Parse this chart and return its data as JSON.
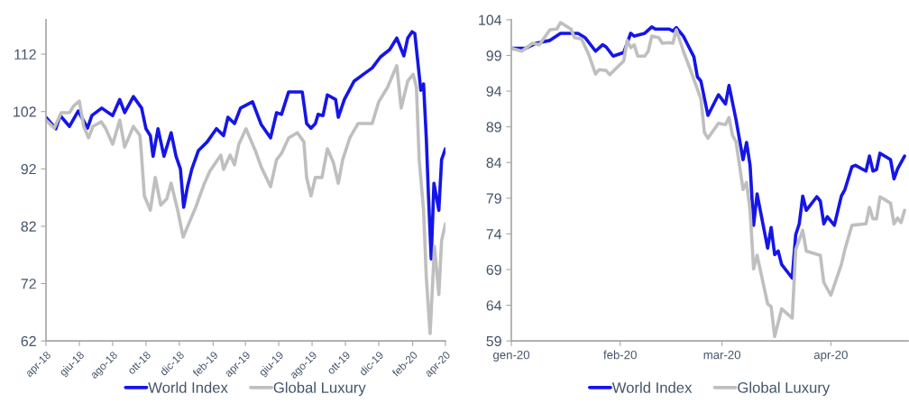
{
  "chart_data": [
    {
      "type": "line",
      "xlim": [
        "2018-04-01",
        "2020-04-01"
      ],
      "ylim": [
        62,
        118
      ],
      "yticks": [
        62,
        72,
        82,
        92,
        102,
        112
      ],
      "xticks": [
        {
          "value": "2018-04-01",
          "label": "apr-18"
        },
        {
          "value": "2018-06-01",
          "label": "giu-18"
        },
        {
          "value": "2018-08-01",
          "label": "ago-18"
        },
        {
          "value": "2018-10-01",
          "label": "ott-18"
        },
        {
          "value": "2018-12-01",
          "label": "dic-18"
        },
        {
          "value": "2019-02-01",
          "label": "feb-19"
        },
        {
          "value": "2019-04-01",
          "label": "apr-19"
        },
        {
          "value": "2019-06-01",
          "label": "giu-19"
        },
        {
          "value": "2019-08-01",
          "label": "ago-19"
        },
        {
          "value": "2019-10-01",
          "label": "ott-19"
        },
        {
          "value": "2019-12-01",
          "label": "dic-19"
        },
        {
          "value": "2020-02-01",
          "label": "feb-20"
        },
        {
          "value": "2020-04-01",
          "label": "apr-20"
        }
      ],
      "grid": false,
      "legend": "bottom",
      "marker": "none",
      "line_style": "solid",
      "series": [
        {
          "name": "World Index",
          "color": "#1515e8",
          "x": [
            "2018-04-01",
            "2018-04-19",
            "2018-04-27",
            "2018-05-14",
            "2018-05-30",
            "2018-06-16",
            "2018-06-24",
            "2018-07-12",
            "2018-08-01",
            "2018-08-14",
            "2018-08-23",
            "2018-09-08",
            "2018-09-23",
            "2018-10-01",
            "2018-10-09",
            "2018-10-14",
            "2018-10-23",
            "2018-11-03",
            "2018-11-16",
            "2018-11-25",
            "2018-12-03",
            "2018-12-09",
            "2018-12-16",
            "2018-12-24",
            "2019-01-05",
            "2019-01-21",
            "2019-02-07",
            "2019-02-20",
            "2019-02-28",
            "2019-03-12",
            "2019-03-23",
            "2019-04-14",
            "2019-04-30",
            "2019-05-17",
            "2019-05-28",
            "2019-06-06",
            "2019-06-19",
            "2019-07-14",
            "2019-07-22",
            "2019-07-30",
            "2019-08-07",
            "2019-08-12",
            "2019-08-21",
            "2019-08-29",
            "2019-09-13",
            "2019-09-18",
            "2019-09-29",
            "2019-10-17",
            "2019-11-03",
            "2019-11-19",
            "2019-12-04",
            "2019-12-21",
            "2020-01-03",
            "2020-01-16",
            "2020-01-23",
            "2020-01-31",
            "2020-02-05",
            "2020-02-16",
            "2020-02-21",
            "2020-02-26",
            "2020-03-01",
            "2020-03-06",
            "2020-03-11",
            "2020-03-20",
            "2020-03-25",
            "2020-04-01"
          ],
          "values": [
            101.0,
            99.0,
            101.3,
            99.4,
            102.1,
            99.1,
            101.3,
            102.6,
            101.3,
            104.1,
            101.8,
            104.6,
            102.6,
            99.0,
            97.8,
            94.2,
            99.0,
            94.2,
            98.3,
            94.2,
            92.0,
            85.3,
            88.9,
            92.0,
            95.2,
            96.7,
            99.0,
            97.8,
            101.0,
            99.9,
            102.6,
            103.7,
            99.7,
            97.4,
            101.8,
            101.5,
            105.4,
            105.4,
            99.9,
            99.1,
            99.9,
            101.5,
            101.3,
            104.9,
            104.1,
            101.0,
            104.1,
            107.3,
            108.5,
            109.6,
            111.5,
            112.8,
            114.8,
            111.7,
            114.8,
            115.9,
            115.6,
            105.7,
            106.8,
            97.4,
            87.3,
            76.3,
            89.5,
            84.8,
            93.6,
            95.5
          ]
        },
        {
          "name": "Global Luxury",
          "color": "#bfbfbf",
          "x": [
            "2018-04-01",
            "2018-04-16",
            "2018-04-29",
            "2018-05-14",
            "2018-05-22",
            "2018-06-01",
            "2018-06-09",
            "2018-06-18",
            "2018-06-26",
            "2018-07-11",
            "2018-07-19",
            "2018-08-01",
            "2018-08-14",
            "2018-08-23",
            "2018-09-08",
            "2018-09-20",
            "2018-09-23",
            "2018-09-28",
            "2018-10-09",
            "2018-10-18",
            "2018-10-28",
            "2018-11-08",
            "2018-11-16",
            "2018-11-28",
            "2018-12-08",
            "2018-12-19",
            "2018-12-31",
            "2019-01-16",
            "2019-01-26",
            "2019-02-15",
            "2019-02-20",
            "2019-03-04",
            "2019-03-12",
            "2019-03-20",
            "2019-04-02",
            "2019-04-19",
            "2019-04-30",
            "2019-05-17",
            "2019-05-28",
            "2019-06-06",
            "2019-06-19",
            "2019-07-05",
            "2019-07-17",
            "2019-07-22",
            "2019-07-30",
            "2019-08-07",
            "2019-08-19",
            "2019-08-29",
            "2019-09-09",
            "2019-09-18",
            "2019-09-26",
            "2019-10-09",
            "2019-10-24",
            "2019-11-09",
            "2019-11-19",
            "2019-12-01",
            "2019-12-17",
            "2020-01-03",
            "2020-01-11",
            "2020-01-23",
            "2020-02-02",
            "2020-02-08",
            "2020-02-13",
            "2020-02-21",
            "2020-02-26",
            "2020-03-04",
            "2020-03-12",
            "2020-03-20",
            "2020-03-25",
            "2020-04-01"
          ],
          "values": [
            100.5,
            99.1,
            101.8,
            101.8,
            103.0,
            103.8,
            99.4,
            97.4,
            99.4,
            100.2,
            99.1,
            96.3,
            100.5,
            95.8,
            99.4,
            97.8,
            94.2,
            87.3,
            84.8,
            90.5,
            85.7,
            86.8,
            89.5,
            84.8,
            80.1,
            82.6,
            85.3,
            89.5,
            91.6,
            94.4,
            91.9,
            94.4,
            92.7,
            96.3,
            99.0,
            95.2,
            92.3,
            88.9,
            93.6,
            94.7,
            97.4,
            98.3,
            96.7,
            90.5,
            87.3,
            90.5,
            90.5,
            95.5,
            93.1,
            89.5,
            93.6,
            97.4,
            99.9,
            99.9,
            99.9,
            103.7,
            106.2,
            110.0,
            102.6,
            107.3,
            108.5,
            106.2,
            93.6,
            84.8,
            73.2,
            63.3,
            78.5,
            70.1,
            79.5,
            82.4
          ]
        }
      ]
    },
    {
      "type": "line",
      "xlim": [
        "2020-01-01",
        "2020-04-23"
      ],
      "ylim": [
        59,
        104
      ],
      "yticks": [
        59,
        64,
        69,
        74,
        79,
        84,
        89,
        94,
        99,
        104
      ],
      "xticks": [
        {
          "value": "2020-01-01",
          "label": "gen-20"
        },
        {
          "value": "2020-02-01",
          "label": "feb-20"
        },
        {
          "value": "2020-03-01",
          "label": "mar-20"
        },
        {
          "value": "2020-04-01",
          "label": "apr-20"
        }
      ],
      "grid": false,
      "legend": "bottom",
      "marker": "none",
      "line_style": "solid",
      "series": [
        {
          "name": "World Index",
          "color": "#1515e8",
          "x": [
            "2020-01-01",
            "2020-01-05",
            "2020-01-08",
            "2020-01-12",
            "2020-01-15",
            "2020-01-20",
            "2020-01-22",
            "2020-01-25",
            "2020-01-27",
            "2020-01-28",
            "2020-01-30",
            "2020-02-02",
            "2020-02-04",
            "2020-02-05",
            "2020-02-08",
            "2020-02-10",
            "2020-02-11",
            "2020-02-15",
            "2020-02-16",
            "2020-02-17",
            "2020-02-19",
            "2020-02-22",
            "2020-02-23",
            "2020-02-24",
            "2020-02-26",
            "2020-02-29",
            "2020-03-02",
            "2020-03-03",
            "2020-03-05",
            "2020-03-07",
            "2020-03-08",
            "2020-03-09",
            "2020-03-10",
            "2020-03-11",
            "2020-03-14",
            "2020-03-15",
            "2020-03-16",
            "2020-03-17",
            "2020-03-18",
            "2020-03-21",
            "2020-03-22",
            "2020-03-23",
            "2020-03-24",
            "2020-03-25",
            "2020-03-28",
            "2020-03-29",
            "2020-03-30",
            "2020-03-31",
            "2020-04-02",
            "2020-04-04",
            "2020-04-05",
            "2020-04-07",
            "2020-04-08",
            "2020-04-11",
            "2020-04-12",
            "2020-04-13",
            "2020-04-14",
            "2020-04-15",
            "2020-04-18",
            "2020-04-19",
            "2020-04-20",
            "2020-04-22"
          ],
          "values": [
            100.0,
            100.0,
            100.7,
            101.1,
            102.1,
            102.1,
            101.5,
            99.6,
            100.5,
            100.2,
            98.9,
            99.4,
            102.1,
            101.7,
            102.1,
            103.0,
            102.7,
            102.7,
            102.4,
            102.9,
            101.7,
            98.8,
            96.0,
            95.4,
            90.6,
            93.5,
            92.2,
            94.8,
            90.0,
            84.4,
            86.8,
            83.6,
            75.2,
            79.6,
            72.0,
            74.9,
            71.1,
            71.6,
            69.7,
            67.8,
            73.9,
            75.4,
            79.3,
            77.3,
            79.2,
            78.6,
            75.4,
            76.4,
            75.2,
            79.3,
            80.2,
            83.4,
            83.6,
            82.8,
            84.9,
            82.8,
            83.0,
            85.3,
            84.4,
            81.7,
            83.1,
            84.9
          ]
        },
        {
          "name": "Global Luxury",
          "color": "#bfbfbf",
          "x": [
            "2020-01-01",
            "2020-01-04",
            "2020-01-07",
            "2020-01-09",
            "2020-01-12",
            "2020-01-14",
            "2020-01-15",
            "2020-01-18",
            "2020-01-19",
            "2020-01-21",
            "2020-01-23",
            "2020-01-25",
            "2020-01-26",
            "2020-01-28",
            "2020-01-29",
            "2020-02-02",
            "2020-02-03",
            "2020-02-04",
            "2020-02-05",
            "2020-02-06",
            "2020-02-08",
            "2020-02-09",
            "2020-02-10",
            "2020-02-12",
            "2020-02-13",
            "2020-02-15",
            "2020-02-16",
            "2020-02-17",
            "2020-02-19",
            "2020-02-21",
            "2020-02-24",
            "2020-02-25",
            "2020-02-26",
            "2020-02-29",
            "2020-03-02",
            "2020-03-03",
            "2020-03-04",
            "2020-03-05",
            "2020-03-07",
            "2020-03-08",
            "2020-03-09",
            "2020-03-10",
            "2020-03-11",
            "2020-03-14",
            "2020-03-15",
            "2020-03-16",
            "2020-03-18",
            "2020-03-21",
            "2020-03-22",
            "2020-03-24",
            "2020-03-25",
            "2020-03-29",
            "2020-03-30",
            "2020-04-01",
            "2020-04-04",
            "2020-04-05",
            "2020-04-07",
            "2020-04-11",
            "2020-04-12",
            "2020-04-13",
            "2020-04-14",
            "2020-04-15",
            "2020-04-18",
            "2020-04-19",
            "2020-04-20",
            "2020-04-21",
            "2020-04-22"
          ],
          "values": [
            100.0,
            99.6,
            100.7,
            100.5,
            102.6,
            102.7,
            103.6,
            102.7,
            101.5,
            101.3,
            99.2,
            96.4,
            97.0,
            96.9,
            96.3,
            98.2,
            101.1,
            100.1,
            100.5,
            98.9,
            98.9,
            99.6,
            101.7,
            101.5,
            100.7,
            100.8,
            100.7,
            102.6,
            99.6,
            97.0,
            92.9,
            88.2,
            87.4,
            89.5,
            89.3,
            90.3,
            87.8,
            86.9,
            80.2,
            81.2,
            77.3,
            69.1,
            71.0,
            64.2,
            63.8,
            59.6,
            63.5,
            62.2,
            71.8,
            74.5,
            71.6,
            71.0,
            67.2,
            65.4,
            69.7,
            71.8,
            75.2,
            75.4,
            77.7,
            76.1,
            76.1,
            79.2,
            78.3,
            75.4,
            76.2,
            75.6,
            77.3
          ]
        }
      ]
    }
  ]
}
